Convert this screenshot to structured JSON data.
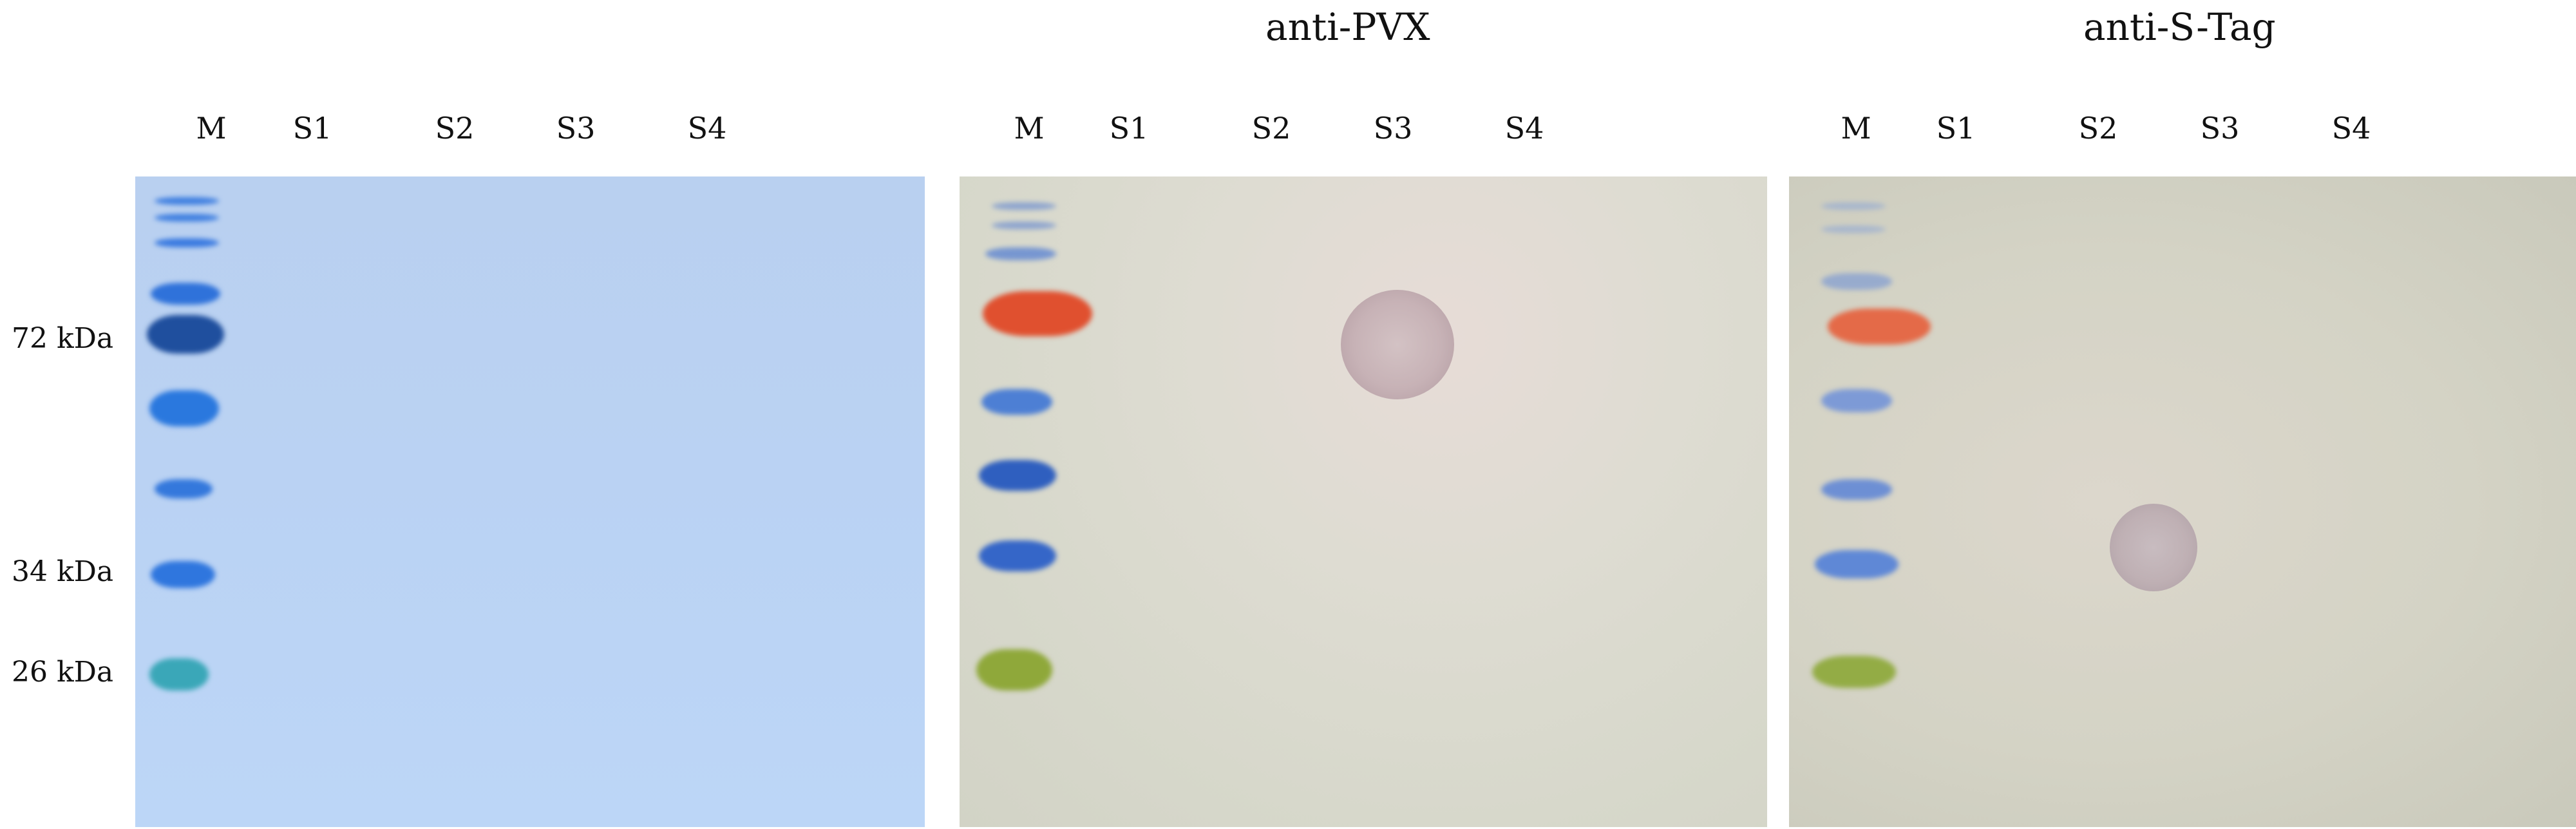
{
  "panels": [
    {
      "id": "gel",
      "title": ""
    },
    {
      "id": "blot-pvx",
      "title": "anti-PVX"
    },
    {
      "id": "blot-stag",
      "title": "anti-S-Tag"
    }
  ],
  "lanes": [
    "M",
    "S1",
    "S2",
    "S3",
    "S4"
  ],
  "markers": [
    "72 kDa",
    "34 kDa",
    "26 kDa"
  ],
  "colors": {
    "gel_background": "#bad2f3",
    "blot_background": "#d6d7ca",
    "marker_blue": "#2f6fd6",
    "marker_red": "#e0502f",
    "marker_green": "#8fa83a"
  }
}
